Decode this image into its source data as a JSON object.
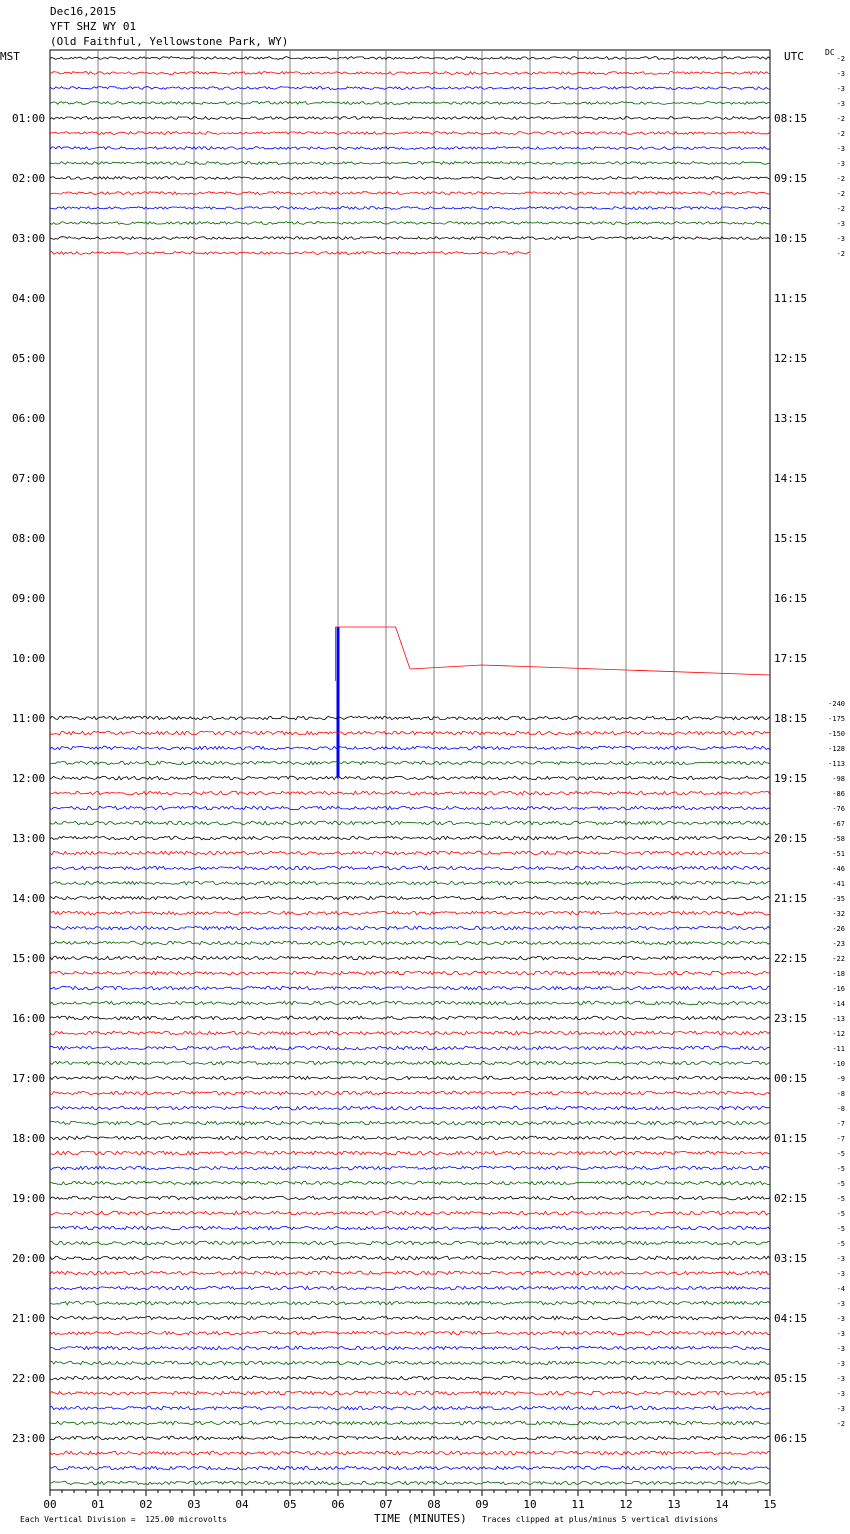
{
  "header": {
    "date": "Dec16,2015",
    "station": "YFT SHZ WY 01",
    "location": "(Old Faithful, Yellowstone Park, WY)"
  },
  "left_zone": "MST",
  "right_zone": "UTC",
  "dc_label": "DC",
  "footer": {
    "vertical_division": "Each Vertical Division =  125.00 microvolts",
    "x_title": "TIME (MINUTES)",
    "clip_note": "Traces clipped at plus/minus 5 vertical divisions"
  },
  "colors": {
    "black": "#000000",
    "red": "#ff0000",
    "blue": "#0000ff",
    "green": "#006400",
    "grid": "#808080"
  },
  "chart_data": {
    "type": "helicorder",
    "minutes_per_line": 15,
    "x_ticks": [
      "00",
      "01",
      "02",
      "03",
      "04",
      "05",
      "06",
      "07",
      "08",
      "09",
      "10",
      "11",
      "12",
      "13",
      "14",
      "15"
    ],
    "x_range": [
      0,
      15
    ],
    "trace_color_cycle": [
      "black",
      "red",
      "blue",
      "green"
    ],
    "left_hour_labels": [
      "01:00",
      "02:00",
      "03:00",
      "04:00",
      "05:00",
      "06:00",
      "07:00",
      "08:00",
      "09:00",
      "10:00",
      "11:00",
      "12:00",
      "13:00",
      "14:00",
      "15:00",
      "16:00",
      "17:00",
      "18:00",
      "19:00",
      "20:00",
      "21:00",
      "22:00",
      "23:00"
    ],
    "right_hour_labels": [
      "08:15",
      "09:15",
      "10:15",
      "11:15",
      "12:15",
      "13:15",
      "14:15",
      "15:15",
      "16:15",
      "17:15",
      "18:15",
      "19:15",
      "20:15",
      "21:15",
      "22:15",
      "23:15",
      "00:15",
      "01:15",
      "02:15",
      "03:15",
      "04:15",
      "05:15",
      "06:15"
    ],
    "dc_offsets": [
      "-2",
      "-3",
      "-3",
      "-3",
      "-2",
      "-2",
      "-3",
      "-3",
      "-2",
      "-2",
      "-2",
      "-3",
      "-3",
      "-2",
      "",
      "",
      "",
      "",
      "",
      "",
      "",
      "",
      "",
      "",
      "",
      "",
      "",
      "",
      "",
      "",
      "",
      "",
      "",
      "",
      "",
      "",
      "",
      "",
      "",
      "",
      "",
      "",
      "",
      "-240",
      "-175",
      "-150",
      "-128",
      "-113",
      "-98",
      "-86",
      "-76",
      "-67",
      "-58",
      "-51",
      "-46",
      "-41",
      "-35",
      "-32",
      "-26",
      "-23",
      "-22",
      "-18",
      "-16",
      "-14",
      "-13",
      "-12",
      "-11",
      "-10",
      "-9",
      "-8",
      "-8",
      "-7",
      "-7",
      "-5",
      "-5",
      "-5",
      "-5",
      "-5",
      "-5",
      "-5",
      "-3",
      "-3",
      "-4",
      "-3",
      "-3",
      "-3",
      "-3",
      "-3",
      "-3",
      "-3",
      "-3",
      "-2"
    ],
    "data_gap": {
      "start_line": 13,
      "start_minute": 10,
      "end_line": 44,
      "end_minute": 0
    },
    "calibration_step": {
      "line": 41,
      "minute": 6.0
    }
  }
}
